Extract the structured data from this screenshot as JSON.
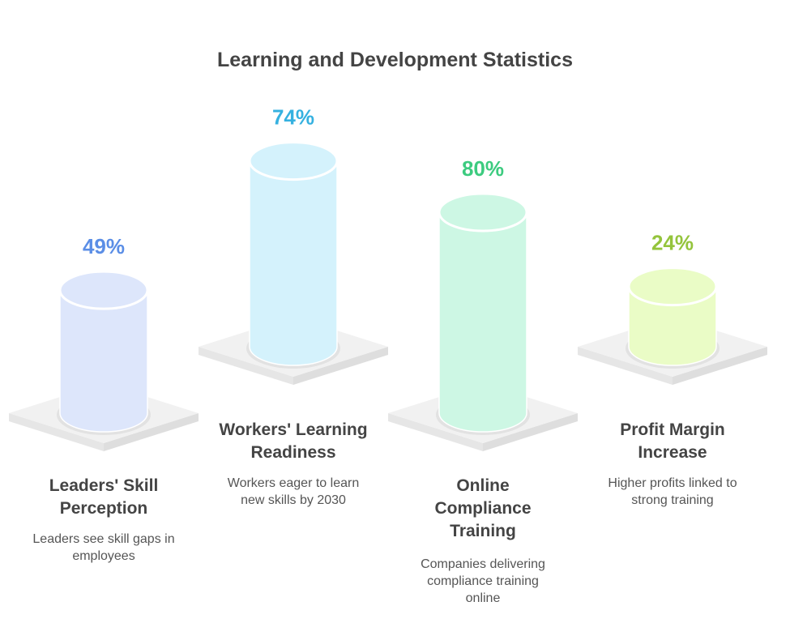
{
  "chart_data": {
    "type": "bar",
    "title": "Learning and Development Statistics",
    "categories": [
      "Leaders' Skill Perception",
      "Workers' Learning Readiness",
      "Online Compliance Training",
      "Profit Margin Increase"
    ],
    "values": [
      49,
      74,
      80,
      24
    ],
    "value_labels": [
      "49%",
      "74%",
      "80%",
      "24%"
    ],
    "descriptions": [
      "Leaders see skill gaps in employees",
      "Workers eager to learn new skills by 2030",
      "Companies delivering compliance training online",
      "Higher profits linked to strong training"
    ],
    "colors": {
      "fill": [
        "#dde6fb",
        "#d4f2fc",
        "#cdf7e4",
        "#eafcc6"
      ],
      "text": [
        "#5b8ee6",
        "#35b1e0",
        "#3ccb7f",
        "#94c43c"
      ]
    }
  }
}
